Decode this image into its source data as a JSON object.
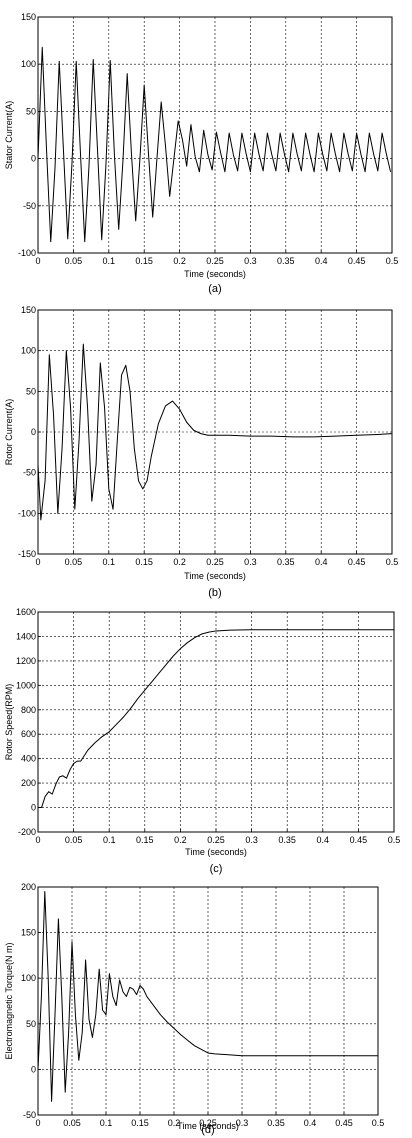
{
  "chart_data": [
    {
      "type": "line",
      "caption": "(a)",
      "xlabel": "Time (seconds)",
      "ylabel": "Stator Current(A)",
      "xlim": [
        0,
        0.5
      ],
      "ylim": [
        -100,
        150
      ],
      "xticks": [
        "0",
        "0.05",
        "0.1",
        "0.15",
        "0.2",
        "0.25",
        "0.3",
        "0.35",
        "0.4",
        "0.45",
        "0.5"
      ],
      "yticks": [
        "-100",
        "-50",
        "0",
        "50",
        "100",
        "150"
      ],
      "grid": true,
      "series": [
        {
          "x": [
            0,
            0.006,
            0.012,
            0.018,
            0.024,
            0.03,
            0.036,
            0.042,
            0.048,
            0.054,
            0.06,
            0.066,
            0.072,
            0.078,
            0.084,
            0.09,
            0.096,
            0.102,
            0.108,
            0.114,
            0.12,
            0.126,
            0.132,
            0.138,
            0.144,
            0.15,
            0.156,
            0.162,
            0.168,
            0.174,
            0.18,
            0.186,
            0.192,
            0.198,
            0.204,
            0.21,
            0.216,
            0.222,
            0.228,
            0.234,
            0.24,
            0.246,
            0.252,
            0.258,
            0.264,
            0.27,
            0.276,
            0.282,
            0.288,
            0.294,
            0.3,
            0.306,
            0.312,
            0.318,
            0.324,
            0.33,
            0.336,
            0.342,
            0.348,
            0.354,
            0.36,
            0.366,
            0.372,
            0.378,
            0.384,
            0.39,
            0.396,
            0.402,
            0.408,
            0.414,
            0.42,
            0.426,
            0.432,
            0.438,
            0.444,
            0.45,
            0.456,
            0.462,
            0.468,
            0.474,
            0.48,
            0.486,
            0.492,
            0.498
          ],
          "y": [
            0,
            118,
            10,
            -88,
            -10,
            103,
            8,
            -85,
            -5,
            103,
            5,
            -88,
            -8,
            105,
            10,
            -86,
            -6,
            104,
            3,
            -75,
            -2,
            90,
            5,
            -66,
            0,
            78,
            6,
            -62,
            0,
            60,
            14,
            -40,
            0,
            40,
            20,
            -8,
            36,
            2,
            -14,
            30,
            4,
            -12,
            28,
            6,
            -14,
            27,
            4,
            -13,
            27,
            5,
            -14,
            27,
            5,
            -13,
            27,
            5,
            -13,
            27,
            5,
            -14,
            27,
            5,
            -13,
            27,
            5,
            -14,
            27,
            5,
            -13,
            27,
            5,
            -14,
            27,
            5,
            -13,
            27,
            5,
            -14,
            27,
            5,
            -13,
            27,
            5,
            -14
          ]
        }
      ]
    },
    {
      "type": "line",
      "caption": "(b)",
      "xlabel": "Time (seconds)",
      "ylabel": "Rotor Current(A)",
      "xlim": [
        0,
        0.5
      ],
      "ylim": [
        -150,
        150
      ],
      "xticks": [
        "0",
        "0.05",
        "0.1",
        "0.15",
        "0.2",
        "0.25",
        "0.3",
        "0.35",
        "0.4",
        "0.45",
        "0.5"
      ],
      "yticks": [
        "-150",
        "-100",
        "-50",
        "0",
        "50",
        "100",
        "150"
      ],
      "grid": true,
      "series": [
        {
          "x": [
            0,
            0.004,
            0.01,
            0.016,
            0.022,
            0.028,
            0.034,
            0.04,
            0.046,
            0.052,
            0.058,
            0.064,
            0.07,
            0.076,
            0.082,
            0.088,
            0.094,
            0.1,
            0.106,
            0.112,
            0.118,
            0.124,
            0.13,
            0.136,
            0.142,
            0.148,
            0.154,
            0.16,
            0.17,
            0.18,
            0.19,
            0.2,
            0.21,
            0.22,
            0.23,
            0.24,
            0.25,
            0.27,
            0.3,
            0.33,
            0.36,
            0.39,
            0.42,
            0.45,
            0.48,
            0.5
          ],
          "y": [
            -40,
            -108,
            -60,
            95,
            20,
            -100,
            -20,
            100,
            30,
            -95,
            -10,
            108,
            30,
            -85,
            -40,
            85,
            30,
            -70,
            -95,
            -10,
            70,
            82,
            50,
            -20,
            -60,
            -70,
            -60,
            -30,
            10,
            32,
            38,
            28,
            12,
            2,
            -2,
            -4,
            -4,
            -4,
            -5,
            -5,
            -6,
            -6,
            -5,
            -4,
            -3,
            -2
          ]
        }
      ]
    },
    {
      "type": "line",
      "caption": "(c)",
      "xlabel": "Time (seconds)",
      "ylabel": "Rotor Speed(RPM)",
      "xlim": [
        0,
        0.5
      ],
      "ylim": [
        -200,
        1600
      ],
      "xticks": [
        "0",
        "0.05",
        "0.1",
        "0.15",
        "0.2",
        "0.25",
        "0.3",
        "0.35",
        "0.4",
        "0.45",
        "0.5"
      ],
      "yticks": [
        "-200",
        "0",
        "200",
        "400",
        "600",
        "800",
        "1000",
        "1200",
        "1400",
        "1600"
      ],
      "grid": true,
      "series": [
        {
          "x": [
            0,
            0.005,
            0.01,
            0.015,
            0.02,
            0.025,
            0.03,
            0.035,
            0.04,
            0.045,
            0.05,
            0.055,
            0.06,
            0.07,
            0.08,
            0.09,
            0.1,
            0.11,
            0.12,
            0.13,
            0.14,
            0.15,
            0.16,
            0.17,
            0.18,
            0.19,
            0.2,
            0.21,
            0.22,
            0.23,
            0.24,
            0.25,
            0.27,
            0.3,
            0.35,
            0.4,
            0.45,
            0.5
          ],
          "y": [
            0,
            0,
            90,
            130,
            110,
            190,
            250,
            260,
            240,
            310,
            360,
            380,
            380,
            470,
            530,
            580,
            620,
            680,
            740,
            810,
            890,
            960,
            1030,
            1100,
            1170,
            1240,
            1300,
            1350,
            1390,
            1420,
            1435,
            1445,
            1452,
            1455,
            1455,
            1455,
            1455,
            1455
          ]
        }
      ]
    },
    {
      "type": "line",
      "caption": "(d)",
      "xlabel": "Time (seconds)",
      "ylabel": "Electromagnetic Torque(N m)",
      "xlim": [
        0,
        0.5
      ],
      "ylim": [
        -50,
        200
      ],
      "xticks": [
        "0",
        "0.05",
        "0.1",
        "0.15",
        "0.2",
        "0.25",
        "0.3",
        "0.35",
        "0.4",
        "0.45",
        "0.5"
      ],
      "yticks": [
        "-50",
        "0",
        "50",
        "100",
        "150",
        "200"
      ],
      "grid": true,
      "series": [
        {
          "x": [
            0,
            0.005,
            0.01,
            0.015,
            0.02,
            0.025,
            0.03,
            0.035,
            0.04,
            0.045,
            0.05,
            0.055,
            0.06,
            0.065,
            0.07,
            0.075,
            0.08,
            0.085,
            0.09,
            0.095,
            0.1,
            0.105,
            0.11,
            0.115,
            0.12,
            0.125,
            0.13,
            0.135,
            0.14,
            0.145,
            0.15,
            0.155,
            0.16,
            0.17,
            0.18,
            0.19,
            0.2,
            0.21,
            0.22,
            0.23,
            0.24,
            0.25,
            0.26,
            0.28,
            0.3,
            0.35,
            0.4,
            0.45,
            0.5
          ],
          "y": [
            0,
            80,
            195,
            100,
            -35,
            60,
            165,
            80,
            -25,
            40,
            140,
            60,
            10,
            40,
            120,
            55,
            35,
            60,
            110,
            65,
            60,
            105,
            80,
            70,
            98,
            85,
            80,
            90,
            88,
            82,
            92,
            88,
            80,
            70,
            60,
            52,
            45,
            38,
            32,
            26,
            22,
            18,
            17,
            16,
            15,
            15,
            15,
            15,
            15
          ]
        }
      ]
    }
  ]
}
